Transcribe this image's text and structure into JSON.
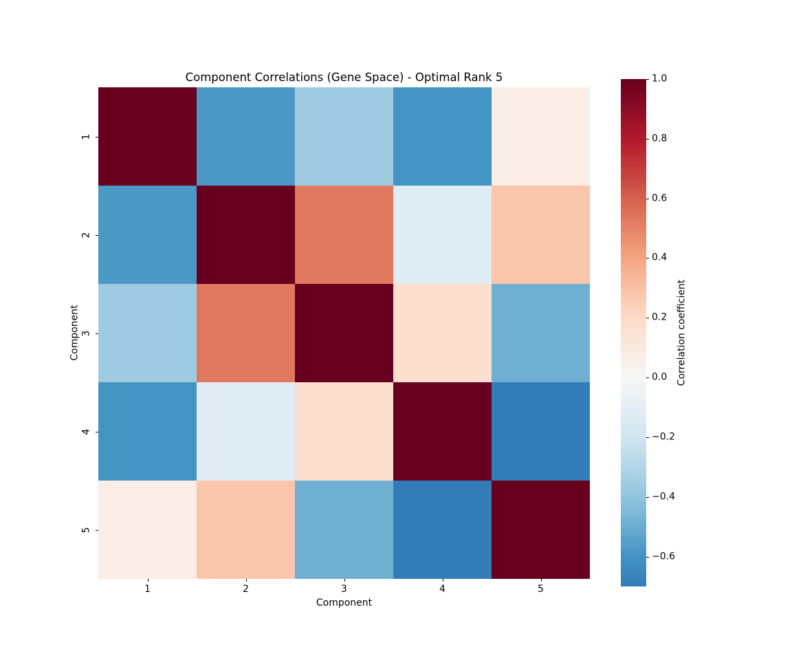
{
  "chart_data": {
    "type": "heatmap",
    "title": "Component Correlations (Gene Space) - Optimal Rank 5",
    "xlabel": "Component",
    "ylabel": "Component",
    "x_tick_labels": [
      "1",
      "2",
      "3",
      "4",
      "5"
    ],
    "y_tick_labels": [
      "1",
      "2",
      "3",
      "4",
      "5"
    ],
    "matrix": [
      [
        1.0,
        -0.58,
        -0.36,
        -0.6,
        0.07
      ],
      [
        -0.58,
        1.0,
        0.53,
        -0.12,
        0.28
      ],
      [
        -0.36,
        0.53,
        1.0,
        0.17,
        -0.49
      ],
      [
        -0.6,
        -0.12,
        0.17,
        1.0,
        -0.7
      ],
      [
        0.07,
        0.28,
        -0.49,
        -0.7,
        1.0
      ]
    ],
    "colormap": "RdBu_r",
    "color_norm": {
      "vmin": -1.0,
      "vmax": 1.0,
      "center": 0.0
    },
    "colorbar": {
      "label": "Correlation coefficient",
      "max_value": 1.0,
      "min_value": -0.7,
      "tick_values": [
        1.0,
        0.8,
        0.6,
        0.4,
        0.2,
        0.0,
        -0.2,
        -0.4,
        -0.6
      ],
      "tick_labels": [
        "1.0",
        "0.8",
        "0.6",
        "0.4",
        "0.2",
        "0.0",
        "−0.2",
        "−0.4",
        "−0.6"
      ]
    },
    "grid": false,
    "cell_annotations": false,
    "spines": false
  },
  "colors": {
    "background": "#ffffff",
    "text": "#000000",
    "cmap_max": "#67001f",
    "cmap_mid": "#f7f7f7",
    "cmap_min_shown": "#347eb8"
  }
}
